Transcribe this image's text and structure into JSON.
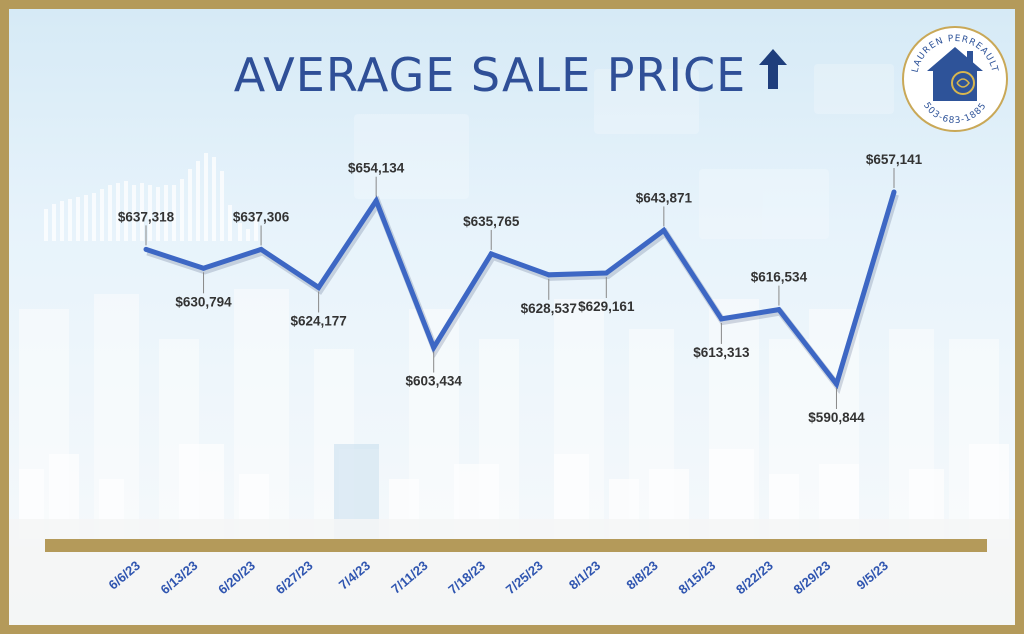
{
  "title": "AVERAGE SALE PRICE",
  "title_arrow": "up-arrow-icon",
  "logo": {
    "name": "LAUREN PERREAULT",
    "phone": "503-683-1885"
  },
  "colors": {
    "line": "#3d67c4",
    "title": "#2f4f97",
    "frame": "#b49a5a",
    "label": "#333333"
  },
  "chart_data": {
    "type": "line",
    "title": "AVERAGE SALE PRICE",
    "xlabel": "",
    "ylabel": "",
    "grid": false,
    "categories": [
      "6/6/23",
      "6/13/23",
      "6/20/23",
      "6/27/23",
      "7/4/23",
      "7/11/23",
      "7/18/23",
      "7/25/23",
      "8/1/23",
      "8/8/23",
      "8/15/23",
      "8/22/23",
      "8/29/23",
      "9/5/23"
    ],
    "values": [
      637318,
      630794,
      637306,
      624177,
      654134,
      603434,
      635765,
      628537,
      629161,
      643871,
      613313,
      616534,
      590844,
      657141
    ],
    "data_labels": [
      "$637,318",
      "$630,794",
      "$637,306",
      "$624,177",
      "$654,134",
      "$603,434",
      "$635,765",
      "$628,537",
      "$629,161",
      "$643,871",
      "$613,313",
      "$616,534",
      "$590,844",
      "$657,141"
    ],
    "label_position": [
      "above",
      "below",
      "above",
      "below",
      "above",
      "below",
      "above",
      "below",
      "below",
      "above",
      "below",
      "above",
      "below",
      "above"
    ]
  }
}
